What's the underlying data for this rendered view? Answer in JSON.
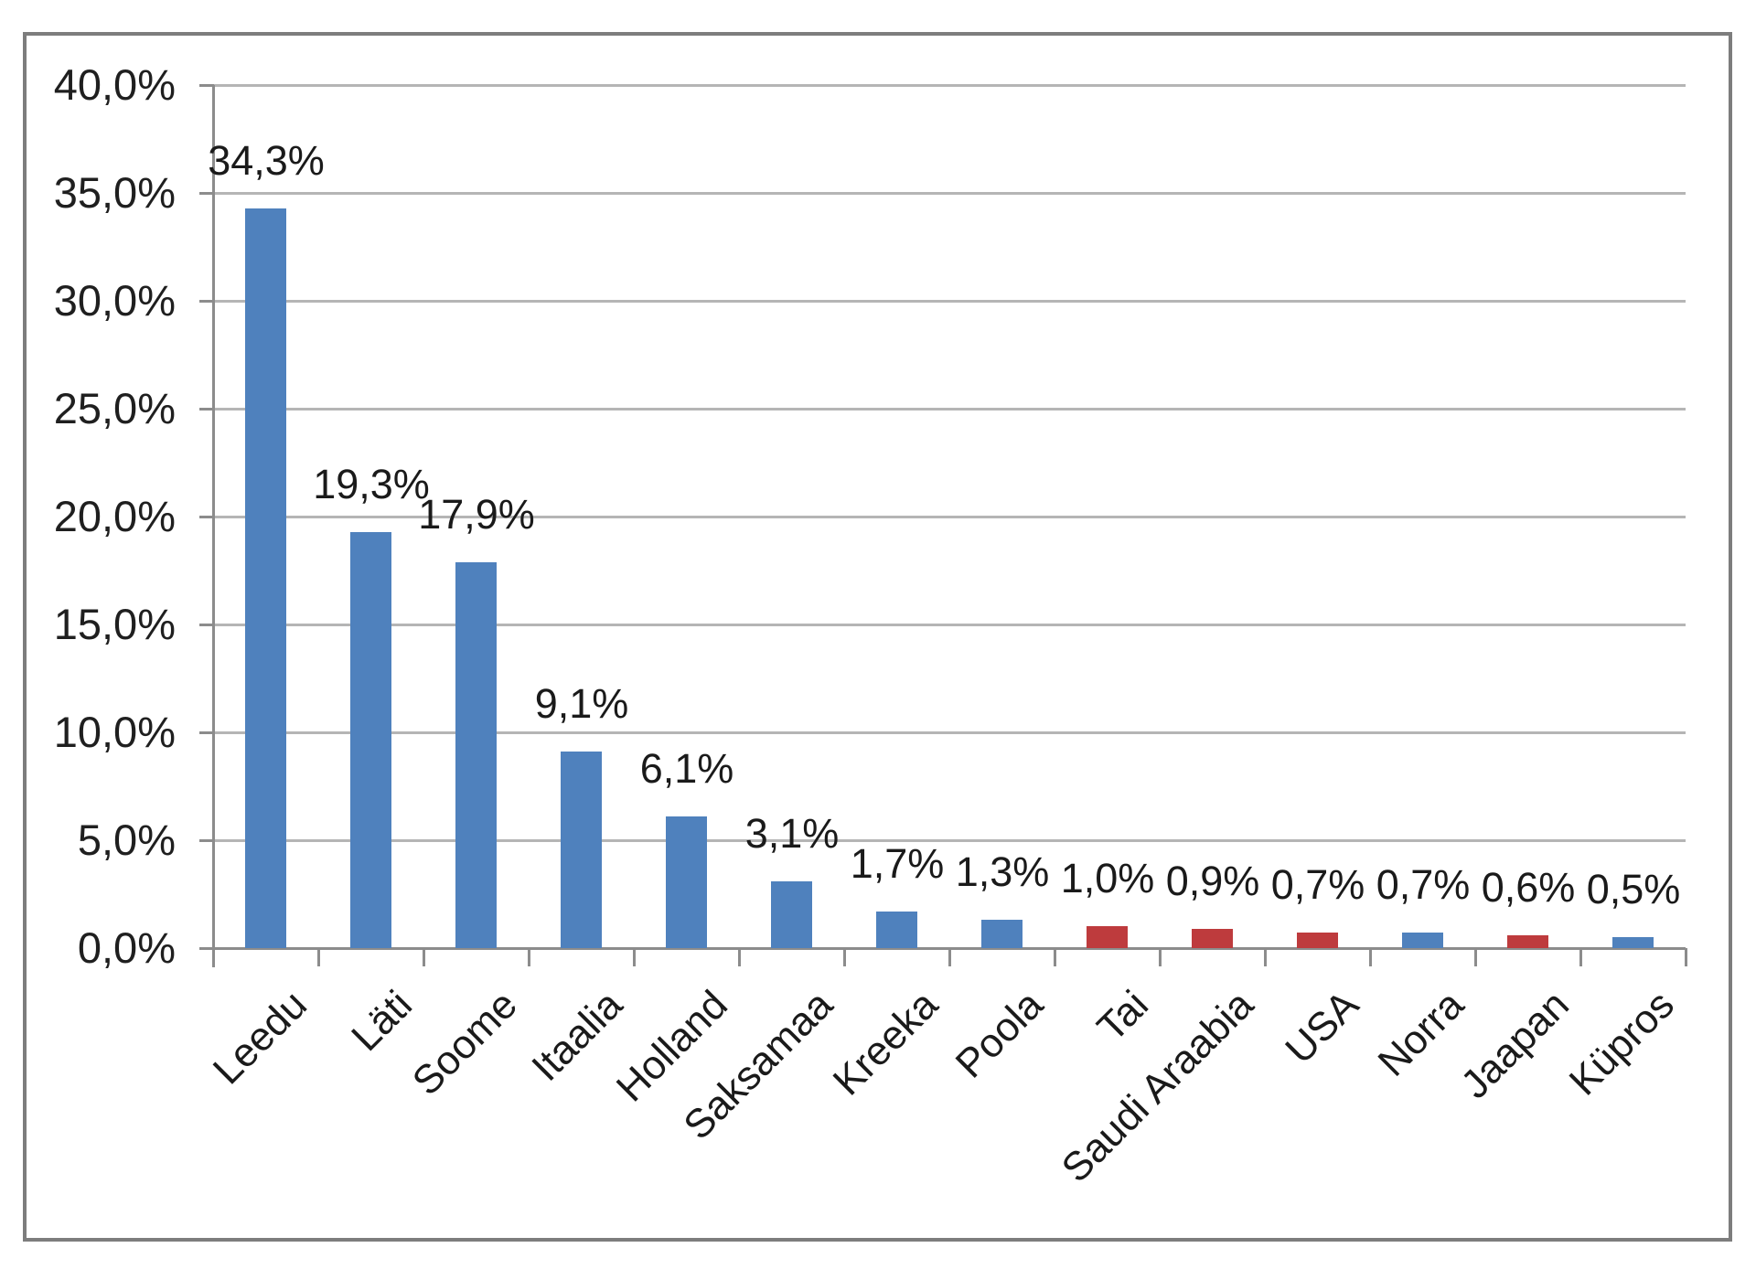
{
  "chart_data": {
    "type": "bar",
    "title": "",
    "xlabel": "",
    "ylabel": "",
    "categories": [
      "Leedu",
      "Läti",
      "Soome",
      "Itaalia",
      "Holland",
      "Saksamaa",
      "Kreeka",
      "Poola",
      "Tai",
      "Saudi Araabia",
      "USA",
      "Norra",
      "Jaapan",
      "Küpros"
    ],
    "values": [
      34.3,
      19.3,
      17.9,
      9.1,
      6.1,
      3.1,
      1.7,
      1.3,
      1.0,
      0.9,
      0.7,
      0.7,
      0.6,
      0.5
    ],
    "data_labels": [
      "34,3%",
      "19,3%",
      "17,9%",
      "9,1%",
      "6,1%",
      "3,1%",
      "1,7%",
      "1,3%",
      "1,0%",
      "0,9%",
      "0,7%",
      "0,7%",
      "0,6%",
      "0,5%"
    ],
    "bar_color_keys": [
      "blue",
      "blue",
      "blue",
      "blue",
      "blue",
      "blue",
      "blue",
      "blue",
      "red",
      "red",
      "red",
      "blue",
      "red",
      "blue"
    ],
    "ylim": [
      0,
      40
    ],
    "yticks": [
      {
        "value": 0,
        "label": "0,0%"
      },
      {
        "value": 5,
        "label": "5,0%"
      },
      {
        "value": 10,
        "label": "10,0%"
      },
      {
        "value": 15,
        "label": "15,0%"
      },
      {
        "value": 20,
        "label": "20,0%"
      },
      {
        "value": 25,
        "label": "25,0%"
      },
      {
        "value": 30,
        "label": "30,0%"
      },
      {
        "value": 35,
        "label": "35,0%"
      },
      {
        "value": 40,
        "label": "40,0%"
      }
    ],
    "grid": true,
    "legend": null,
    "palette": {
      "blue": "#4F81BD",
      "red": "#BE3B3D"
    }
  },
  "style": {
    "background": "#ffffff",
    "frame_border": "#7d7d7d",
    "gridline": "#b5b5b5",
    "axis": "#8c8c8c",
    "text": "#1a1a1a"
  }
}
